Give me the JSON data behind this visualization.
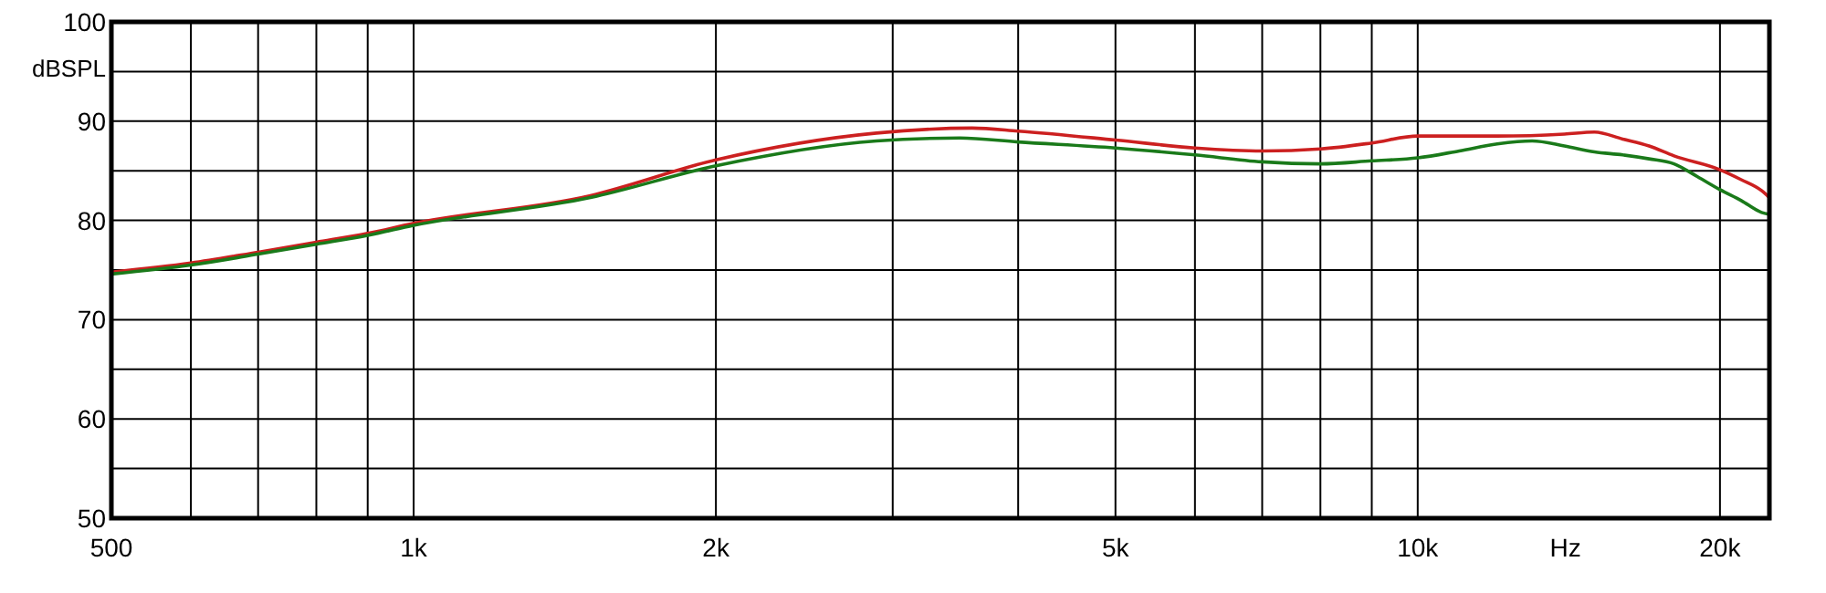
{
  "chart_data": {
    "type": "line",
    "xlabel": "Hz",
    "ylabel": "dBSPL",
    "log": "x",
    "grid": true,
    "line_style": "solid",
    "xlim": [
      500,
      22400
    ],
    "xticks": [
      500,
      {
        "value": 600,
        "label": null
      },
      {
        "value": 700,
        "label": null
      },
      {
        "value": 800,
        "label": null
      },
      {
        "value": 900,
        "label": null
      },
      {
        "value": 1000,
        "label": "1k"
      },
      {
        "value": 2000,
        "label": "2k"
      },
      {
        "value": 3000,
        "label": null
      },
      {
        "value": 4000,
        "label": null
      },
      {
        "value": 5000,
        "label": "5k"
      },
      {
        "value": 6000,
        "label": null
      },
      {
        "value": 7000,
        "label": null
      },
      {
        "value": 8000,
        "label": null
      },
      {
        "value": 9000,
        "label": null
      },
      {
        "value": 10000,
        "label": "10k"
      },
      {
        "value": 20000,
        "label": "20k"
      }
    ],
    "ylim": [
      50,
      100
    ],
    "yticks": [
      50,
      {
        "value": 55,
        "label": null
      },
      60,
      {
        "value": 65,
        "label": null
      },
      70,
      {
        "value": 75,
        "label": null
      },
      80,
      {
        "value": 85,
        "label": null
      },
      90,
      {
        "value": 95,
        "label": null
      },
      100
    ],
    "series": [
      {
        "color": "#cc2020",
        "x": [
          500,
          600,
          700,
          800,
          900,
          1000,
          1500,
          2000,
          2890,
          3600,
          4000,
          5000,
          6000,
          7000,
          8000,
          9000,
          10000,
          12000,
          14000,
          15000,
          16000,
          17000,
          18000,
          20000,
          21000,
          22000,
          22400
        ],
        "values": [
          74.8,
          75.7,
          76.8,
          77.8,
          78.7,
          79.7,
          82.5,
          86.1,
          88.8,
          89.3,
          89.0,
          88.1,
          87.3,
          87.0,
          87.2,
          87.8,
          88.5,
          88.5,
          88.7,
          88.9,
          88.2,
          87.5,
          86.5,
          85.1,
          84.1,
          83.0,
          82.3
        ]
      },
      {
        "color": "#1a7a1a",
        "x": [
          500,
          600,
          700,
          800,
          900,
          1000,
          1500,
          2000,
          2890,
          3500,
          4000,
          5000,
          6000,
          7000,
          8000,
          9000,
          10000,
          11000,
          12000,
          13000,
          14000,
          15000,
          16000,
          17000,
          18000,
          19000,
          20000,
          21000,
          22000,
          22400
        ],
        "values": [
          74.6,
          75.5,
          76.6,
          77.6,
          78.5,
          79.5,
          82.3,
          85.5,
          88.0,
          88.3,
          87.9,
          87.3,
          86.6,
          85.9,
          85.7,
          86.0,
          86.3,
          87.0,
          87.7,
          88.0,
          87.5,
          86.9,
          86.6,
          86.2,
          85.7,
          84.4,
          83.1,
          82.0,
          80.8,
          80.6
        ]
      }
    ]
  }
}
